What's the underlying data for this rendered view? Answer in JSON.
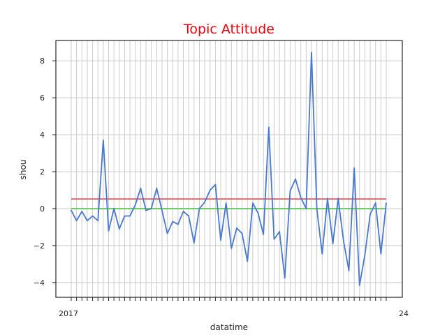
{
  "chart_data": {
    "type": "line",
    "title": "Topic Attitude",
    "xlabel": "datatime",
    "ylabel": "shou",
    "ylim": [
      -4.8,
      9.1
    ],
    "yticks": [
      -4,
      -2,
      0,
      2,
      4,
      6,
      8
    ],
    "x_tick_labels_legible": [
      "2017",
      "24"
    ],
    "grid": true,
    "series": [
      {
        "values": [
          -0.1,
          -0.65,
          -0.15,
          -0.65,
          -0.4,
          -0.65,
          3.7,
          -1.2,
          0.0,
          -1.1,
          -0.4,
          -0.4,
          0.2,
          1.1,
          -0.1,
          0.0,
          1.1,
          -0.1,
          -1.35,
          -0.7,
          -0.85,
          -0.15,
          -0.4,
          -1.85,
          0.0,
          0.35,
          1.0,
          1.3,
          -1.7,
          0.3,
          -2.15,
          -1.05,
          -1.35,
          -2.85,
          0.3,
          -0.25,
          -1.4,
          4.4,
          -1.65,
          -1.25,
          -3.75,
          0.95,
          1.6,
          0.6,
          0.0,
          8.45,
          0.0,
          -2.45,
          0.55,
          -1.9,
          0.55,
          -1.75,
          -3.35,
          2.2,
          -4.15,
          -2.5,
          -0.3,
          0.3,
          -2.45,
          0.3
        ]
      },
      {
        "values": [
          0.52,
          0.52
        ]
      },
      {
        "values": [
          0.0,
          0.0
        ]
      }
    ]
  },
  "colors": {
    "title": "#e8000b",
    "line": "#4878cf",
    "mean_line": "#d65f5f",
    "zero_line": "#6acc65",
    "grid": "#cccccc",
    "frame": "#262626"
  }
}
